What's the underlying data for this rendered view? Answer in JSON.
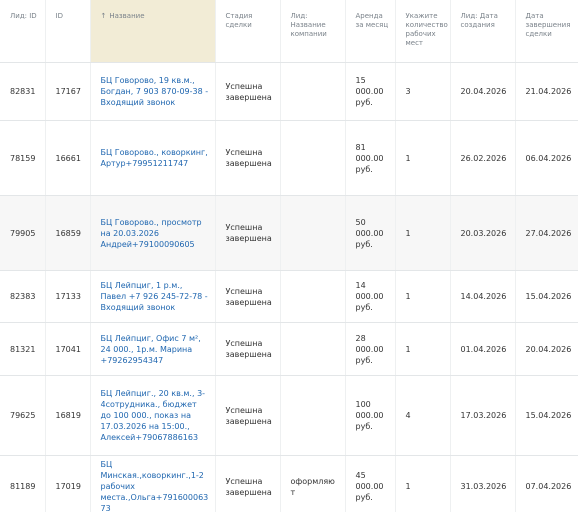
{
  "table": {
    "header": [
      "Лид: ID",
      "ID",
      "Название",
      "Стадия сделки",
      "Лид: Название компании",
      "Аренда за месяц",
      "Укажите количество рабочих мест",
      "Лид: Дата создания",
      "Дата завершения сделки"
    ],
    "rows": [
      [
        "82831",
        "17167",
        "БЦ Говорово, 19 кв.м., Богдан, 7 903 870-09-38 - Входящий звонок",
        "Успешна завершена",
        null,
        "15 000.00 руб.",
        "3",
        "20.04.2026",
        "21.04.2026"
      ],
      [
        "78159",
        "16661",
        "БЦ Говорово., коворкинг, Артур+79951211747",
        "Успешна завершена",
        null,
        "81 000.00 руб.",
        "1",
        "26.02.2026",
        "06.04.2026"
      ],
      [
        "79905",
        "16859",
        "БЦ Говорово., просмотр на 20.03.2026 Андрей+79100090605",
        "Успешна завершена",
        null,
        "50 000.00 руб.",
        "1",
        "20.03.2026",
        "27.04.2026"
      ],
      [
        "82383",
        "17133",
        "БЦ Лейпциг, 1 р.м., Павел +7 926 245-72-78 - Входящий звонок",
        "Успешна завершена",
        null,
        "14 000.00 руб.",
        "1",
        "14.04.2026",
        "15.04.2026"
      ],
      [
        "81321",
        "17041",
        "БЦ Лейпциг, Офис 7 м², 24 000., 1р.м. Марина +79262954347",
        "Успешна завершена",
        null,
        "28 000.00 руб.",
        "1",
        "01.04.2026",
        "20.04.2026"
      ],
      [
        "79625",
        "16819",
        "БЦ Лейпциг., 20 кв.м., 3-4сотрудника., бюджет до 100 000., показ на 17.03.2026 на 15:00., Алексей+79067886163",
        "Успешна завершена",
        null,
        "100 000.00 руб.",
        "4",
        "17.03.2026",
        "15.04.2026"
      ],
      [
        "81189",
        "17019",
        "БЦ Минская.,коворкинг.,1-2 рабочих места.,Ольга+79160006373",
        "Успешна завершена",
        "оформляют",
        "45 000.00 руб.",
        "1",
        "31.03.2026",
        "07.04.2026"
      ]
    ]
  }
}
